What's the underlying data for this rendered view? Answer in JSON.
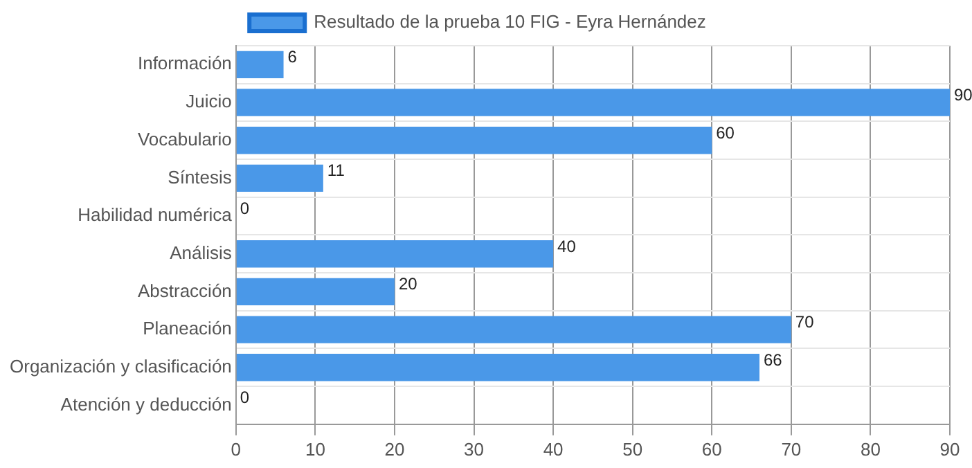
{
  "chart_data": {
    "type": "bar",
    "orientation": "horizontal",
    "categories": [
      "Información",
      "Juicio",
      "Vocabulario",
      "Síntesis",
      "Habilidad numérica",
      "Análisis",
      "Abstracción",
      "Planeación",
      "Organización y clasificación",
      "Atención y deducción"
    ],
    "series": [
      {
        "name": "Resultado de la prueba 10 FIG - Eyra Hernández",
        "color": "#4a98e8",
        "values": [
          6,
          90,
          60,
          11,
          0,
          40,
          20,
          70,
          66,
          0
        ]
      }
    ],
    "xlim": [
      0,
      90
    ],
    "xticks": [
      0,
      10,
      20,
      30,
      40,
      50,
      60,
      70,
      80,
      90
    ],
    "grid": true,
    "legend": "top",
    "data_labels": true
  }
}
